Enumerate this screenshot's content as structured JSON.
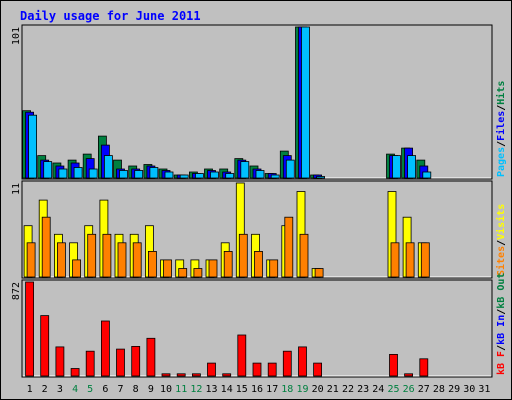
{
  "title": "Daily usage for June 2011",
  "colors": {
    "outer_bg": "#c0c0c0",
    "plot_bg": "#c0c0c0",
    "title": "#0000ff",
    "hits": "#008040",
    "files": "#0000ff",
    "pages": "#00c0ff",
    "visits": "#ffff00",
    "sites": "#ff8000",
    "kbin": "#0000ff",
    "kbout": "#008040",
    "kbf": "#ff0000",
    "weekend": "#008040",
    "weekday": "#000000"
  },
  "chart_data": [
    {
      "type": "bar",
      "panel": "top",
      "ylim": [
        0,
        101
      ],
      "max_label": "101",
      "side_legend": [
        {
          "text": "Pages",
          "color": "#00c0ff"
        },
        {
          "text": "/",
          "color": "#000000"
        },
        {
          "text": "Files",
          "color": "#0000ff"
        },
        {
          "text": "/",
          "color": "#000000"
        },
        {
          "text": "Hits",
          "color": "#008040"
        }
      ],
      "categories": [
        "1",
        "2",
        "3",
        "4",
        "5",
        "6",
        "7",
        "8",
        "9",
        "10",
        "11",
        "12",
        "13",
        "14",
        "15",
        "16",
        "17",
        "18",
        "19",
        "20",
        "21",
        "22",
        "23",
        "24",
        "25",
        "26",
        "27",
        "28",
        "29",
        "30",
        "31"
      ],
      "series": [
        {
          "values": [
            45,
            15,
            10,
            12,
            16,
            28,
            12,
            8,
            9,
            6,
            2,
            4,
            6,
            6,
            13,
            8,
            3,
            18,
            101,
            2,
            0,
            0,
            0,
            0,
            16,
            20,
            12,
            0,
            0,
            0,
            0
          ],
          "color": "#008040"
        },
        {
          "values": [
            44,
            12,
            8,
            10,
            13,
            22,
            6,
            6,
            8,
            5,
            2,
            3,
            5,
            4,
            12,
            6,
            3,
            15,
            101,
            2,
            0,
            0,
            0,
            0,
            15,
            20,
            8,
            0,
            0,
            0,
            0
          ],
          "color": "#0000ff"
        },
        {
          "values": [
            42,
            11,
            6,
            7,
            6,
            15,
            5,
            5,
            7,
            4,
            2,
            3,
            4,
            3,
            11,
            5,
            2,
            12,
            101,
            1,
            0,
            0,
            0,
            0,
            15,
            15,
            4,
            0,
            0,
            0,
            0
          ],
          "color": "#00c0ff"
        }
      ]
    },
    {
      "type": "bar",
      "panel": "middle",
      "ylim": [
        0,
        11
      ],
      "max_label": "11",
      "side_legend": [
        {
          "text": "Sites",
          "color": "#ff8000"
        },
        {
          "text": "/",
          "color": "#000000"
        },
        {
          "text": "Visits",
          "color": "#ffff00"
        }
      ],
      "categories": [
        "1",
        "2",
        "3",
        "4",
        "5",
        "6",
        "7",
        "8",
        "9",
        "10",
        "11",
        "12",
        "13",
        "14",
        "15",
        "16",
        "17",
        "18",
        "19",
        "20",
        "21",
        "22",
        "23",
        "24",
        "25",
        "26",
        "27",
        "28",
        "29",
        "30",
        "31"
      ],
      "series": [
        {
          "values": [
            6,
            9,
            5,
            4,
            6,
            9,
            5,
            5,
            6,
            2,
            2,
            2,
            2,
            4,
            11,
            5,
            2,
            6,
            10,
            1,
            0,
            0,
            0,
            0,
            10,
            7,
            4,
            0,
            0,
            0,
            0
          ],
          "color": "#ffff00"
        },
        {
          "values": [
            4,
            7,
            4,
            2,
            5,
            5,
            4,
            4,
            3,
            2,
            1,
            1,
            2,
            3,
            5,
            3,
            2,
            7,
            5,
            1,
            0,
            0,
            0,
            0,
            4,
            4,
            4,
            0,
            0,
            0,
            0
          ],
          "color": "#ff8000"
        }
      ]
    },
    {
      "type": "bar",
      "panel": "bottom",
      "ylim": [
        0,
        872
      ],
      "max_label": "872",
      "side_legend": [
        {
          "text": "kB F",
          "color": "#ff0000"
        },
        {
          "text": "/",
          "color": "#000000"
        },
        {
          "text": "kB In",
          "color": "#0000ff"
        },
        {
          "text": "/",
          "color": "#000000"
        },
        {
          "text": "kB Out",
          "color": "#008040"
        }
      ],
      "categories": [
        "1",
        "2",
        "3",
        "4",
        "5",
        "6",
        "7",
        "8",
        "9",
        "10",
        "11",
        "12",
        "13",
        "14",
        "15",
        "16",
        "17",
        "18",
        "19",
        "20",
        "21",
        "22",
        "23",
        "24",
        "25",
        "26",
        "27",
        "28",
        "29",
        "30",
        "31"
      ],
      "series": [
        {
          "values": [
            872,
            560,
            270,
            70,
            230,
            510,
            250,
            275,
            350,
            20,
            20,
            20,
            120,
            20,
            380,
            120,
            120,
            230,
            270,
            120,
            0,
            0,
            0,
            0,
            200,
            20,
            160,
            0,
            0,
            0,
            0
          ],
          "color": "#ff0000"
        }
      ]
    }
  ],
  "x_labels": [
    {
      "t": "1",
      "w": false
    },
    {
      "t": "2",
      "w": false
    },
    {
      "t": "3",
      "w": false
    },
    {
      "t": "4",
      "w": true
    },
    {
      "t": "5",
      "w": true
    },
    {
      "t": "6",
      "w": false
    },
    {
      "t": "7",
      "w": false
    },
    {
      "t": "8",
      "w": false
    },
    {
      "t": "9",
      "w": false
    },
    {
      "t": "10",
      "w": false
    },
    {
      "t": "11",
      "w": true
    },
    {
      "t": "12",
      "w": true
    },
    {
      "t": "13",
      "w": false
    },
    {
      "t": "14",
      "w": false
    },
    {
      "t": "15",
      "w": false
    },
    {
      "t": "16",
      "w": false
    },
    {
      "t": "17",
      "w": false
    },
    {
      "t": "18",
      "w": true
    },
    {
      "t": "19",
      "w": true
    },
    {
      "t": "20",
      "w": false
    },
    {
      "t": "21",
      "w": false
    },
    {
      "t": "22",
      "w": false
    },
    {
      "t": "23",
      "w": false
    },
    {
      "t": "24",
      "w": false
    },
    {
      "t": "25",
      "w": true
    },
    {
      "t": "26",
      "w": true
    },
    {
      "t": "27",
      "w": false
    },
    {
      "t": "28",
      "w": false
    },
    {
      "t": "29",
      "w": false
    },
    {
      "t": "30",
      "w": false
    },
    {
      "t": "31",
      "w": false
    }
  ]
}
